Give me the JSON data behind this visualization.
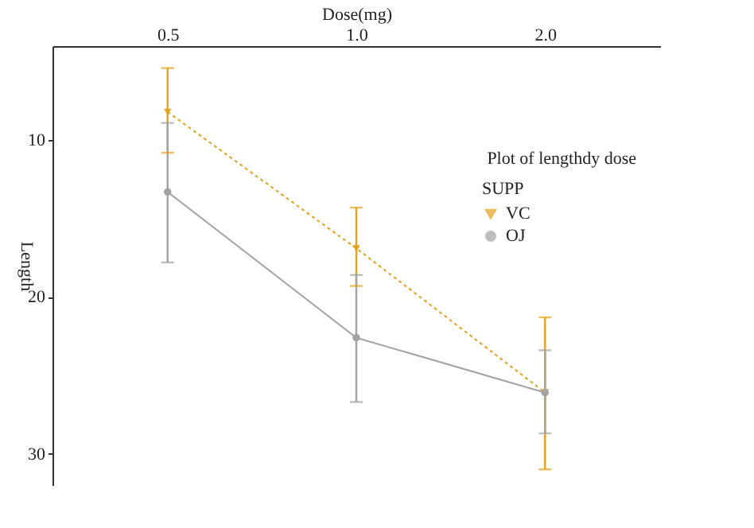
{
  "chart_data": {
    "type": "line",
    "title": "Plot of lengthdy dose",
    "xlabel": "Dose(mg)",
    "ylabel": "Length",
    "legend_title": "SUPP",
    "legend": "right",
    "categories": [
      "0.5",
      "1.0",
      "2.0"
    ],
    "ylim": [
      32,
      4
    ],
    "yticks": [
      10,
      20,
      30
    ],
    "series": [
      {
        "name": "VC",
        "color": "#e6a11a",
        "marker": "triangle",
        "line_style": "dotted",
        "values": [
          8.2,
          16.9,
          26.1
        ],
        "errors": [
          [
            5.4,
            10.8
          ],
          [
            14.3,
            19.3
          ],
          [
            21.3,
            31.0
          ]
        ]
      },
      {
        "name": "OJ",
        "color": "#a3a3a3",
        "marker": "circle",
        "line_style": "solid",
        "values": [
          13.3,
          22.6,
          26.1
        ],
        "errors": [
          [
            8.9,
            17.8
          ],
          [
            18.6,
            26.7
          ],
          [
            23.4,
            28.7
          ]
        ]
      }
    ]
  }
}
